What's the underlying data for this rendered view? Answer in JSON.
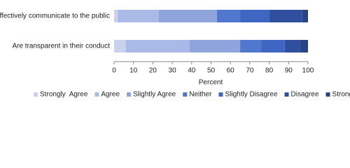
{
  "chart_data": {
    "type": "stacked-barh",
    "categories": [
      "Effectively communicate to the public",
      "Are transparent in their conduct"
    ],
    "series": [
      {
        "name": "Strongly  Agree",
        "color": "#c8d2ee",
        "values": [
          2,
          6
        ]
      },
      {
        "name": "Agree",
        "color": "#aab9e5",
        "values": [
          21,
          33
        ]
      },
      {
        "name": "Slightly Agree",
        "color": "#8fa4dc",
        "values": [
          30,
          26
        ]
      },
      {
        "name": "Neither",
        "color": "#5177cf",
        "values": [
          12,
          11
        ]
      },
      {
        "name": "Slightly Disagree",
        "color": "#4066c3",
        "values": [
          15,
          12
        ]
      },
      {
        "name": "Disagree",
        "color": "#30509f",
        "values": [
          17,
          8
        ]
      },
      {
        "name": "Strongly Disagree",
        "color": "#2a4585",
        "values": [
          3,
          4
        ]
      }
    ],
    "x_label": "Percent",
    "xlim": [
      0,
      100
    ],
    "xticks": [
      0,
      10,
      20,
      30,
      40,
      50,
      60,
      70,
      80,
      90,
      100
    ],
    "legend": "bottom"
  }
}
